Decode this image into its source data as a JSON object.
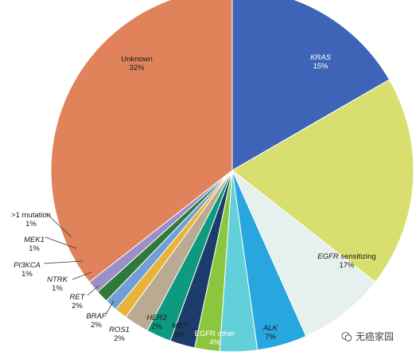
{
  "chart_data": {
    "type": "pie",
    "slices": [
      {
        "label": "KRAS",
        "percent_text": "15%",
        "value": 15,
        "color": "#3d64b6",
        "italic": true
      },
      {
        "label": "EGFR sensitizing",
        "percent_text": "17%",
        "value": 17,
        "color": "#d9df6f",
        "italic": false,
        "italic_part": "EGFR"
      },
      {
        "label": "ALK",
        "percent_text": "7%",
        "value": 7,
        "color": "#e6f0ee",
        "italic": true
      },
      {
        "label": "EGFR other",
        "percent_text": "4%",
        "value": 4,
        "color": "#27a6df",
        "italic": false
      },
      {
        "label": "MET",
        "percent_text": "3%",
        "value": 3,
        "color": "#62cfd9",
        "italic": true
      },
      {
        "label": "HER2",
        "percent_text": "2%",
        "value": 2,
        "color": "#8cc63f",
        "italic": true
      },
      {
        "label": "ROS1",
        "percent_text": "2%",
        "value": 2,
        "color": "#1c3d6c",
        "italic": true
      },
      {
        "label": "BRAF",
        "percent_text": "2%",
        "value": 2,
        "color": "#0e9a7e",
        "italic": true
      },
      {
        "label": "RET",
        "percent_text": "2%",
        "value": 2,
        "color": "#b9ab92",
        "italic": true
      },
      {
        "label": "NTRK",
        "percent_text": "1%",
        "value": 1,
        "color": "#e7b33a",
        "italic": true
      },
      {
        "label": "PI3KCA",
        "percent_text": "1%",
        "value": 1,
        "color": "#6f9fd6",
        "italic": true
      },
      {
        "label": "MEK1",
        "percent_text": "1%",
        "value": 1,
        "color": "#2f7a3a",
        "italic": true
      },
      {
        "label": ">1 mutation",
        "percent_text": "1%",
        "value": 1,
        "color": "#9b8fc7",
        "italic": false
      },
      {
        "label": "Unknown",
        "percent_text": "32%",
        "value": 32,
        "color": "#e0825a",
        "italic": false
      }
    ]
  },
  "watermark": {
    "text": "无癌家园",
    "icon": "wechat-icon"
  }
}
